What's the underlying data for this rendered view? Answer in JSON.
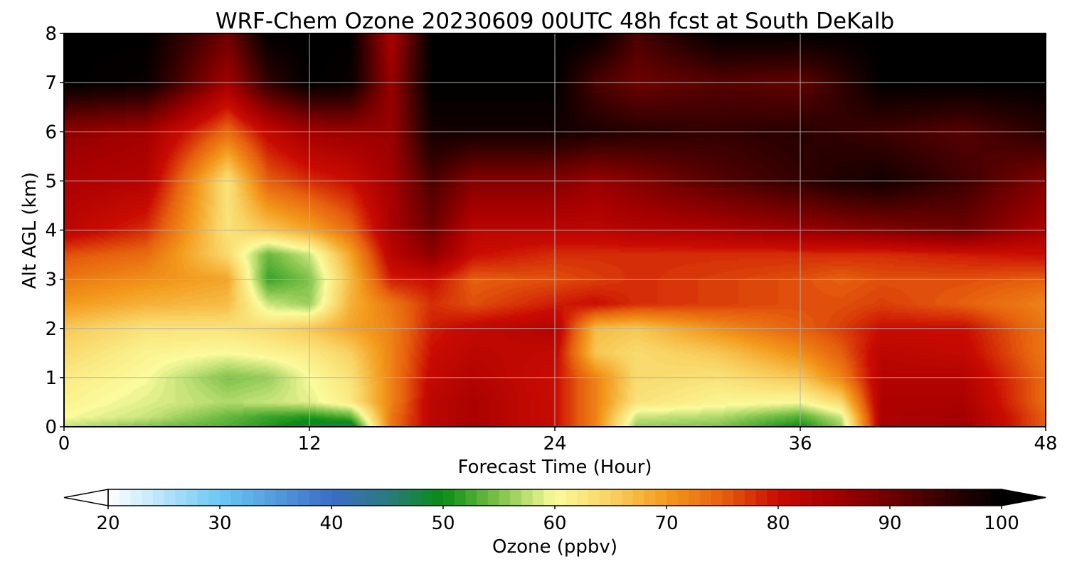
{
  "chart_data": {
    "type": "heatmap",
    "title": "WRF-Chem Ozone  20230609 00UTC 48h fcst at South DeKalb",
    "xlabel": "Forecast Time (Hour)",
    "ylabel": "Alt AGL (km)",
    "xlim": [
      0,
      48
    ],
    "ylim": [
      0,
      8
    ],
    "x_ticks": [
      "0",
      "12",
      "24",
      "36",
      "48"
    ],
    "y_ticks": [
      "0",
      "1",
      "2",
      "3",
      "4",
      "5",
      "6",
      "7",
      "8"
    ],
    "grid": true,
    "x": [
      0,
      4,
      8,
      10,
      12,
      14,
      16,
      18,
      20,
      24,
      26,
      28,
      32,
      36,
      38,
      40,
      44,
      48
    ],
    "y": [
      0,
      0.2,
      0.5,
      1,
      1.5,
      2,
      2.5,
      3,
      3.5,
      4,
      5,
      6,
      7,
      8
    ],
    "z": [
      [
        58,
        55,
        53,
        51,
        48,
        47,
        73,
        82,
        84,
        80,
        72,
        56,
        55,
        50,
        56,
        84,
        85,
        75
      ],
      [
        60,
        58,
        54,
        52,
        51,
        53,
        73,
        82,
        84,
        80,
        72,
        58,
        57,
        53,
        58,
        84,
        85,
        75
      ],
      [
        61,
        59,
        57,
        58,
        59,
        62,
        72,
        82,
        84,
        80,
        72,
        63,
        61,
        60,
        64,
        84,
        84,
        74
      ],
      [
        62,
        60,
        55,
        56,
        60,
        63,
        72,
        81,
        83,
        80,
        72,
        64,
        63,
        66,
        72,
        83,
        83,
        74
      ],
      [
        64,
        61,
        60,
        61,
        62,
        65,
        72,
        80,
        82,
        81,
        66,
        64,
        66,
        71,
        75,
        82,
        81,
        73
      ],
      [
        66,
        63,
        63,
        64,
        66,
        69,
        72,
        79,
        81,
        83,
        67,
        66,
        71,
        75,
        77,
        80,
        80,
        73
      ],
      [
        70,
        68,
        67,
        58,
        56,
        68,
        73,
        78,
        76,
        79,
        80,
        78,
        77,
        76,
        76,
        77,
        75,
        72
      ],
      [
        73,
        71,
        69,
        52,
        55,
        67,
        79,
        80,
        75,
        76,
        77,
        78,
        77,
        76,
        75,
        76,
        76,
        75
      ],
      [
        76,
        74,
        64,
        54,
        58,
        69,
        82,
        87,
        80,
        78,
        78,
        78,
        78,
        78,
        78,
        78,
        79,
        80
      ],
      [
        82,
        78,
        63,
        66,
        69,
        74,
        84,
        90,
        82,
        82,
        82,
        83,
        84,
        86,
        87,
        88,
        90,
        84
      ],
      [
        84,
        83,
        63,
        75,
        78,
        80,
        85,
        93,
        88,
        88,
        86,
        88,
        92,
        95,
        97,
        98,
        94,
        88
      ],
      [
        87,
        85,
        74,
        81,
        85,
        86,
        86,
        98,
        98,
        98,
        97,
        96,
        95,
        96,
        95,
        94,
        92,
        96
      ],
      [
        100,
        99,
        85,
        95,
        100,
        99,
        86,
        100,
        100,
        100,
        93,
        90,
        92,
        91,
        95,
        100,
        100,
        100
      ],
      [
        100,
        100,
        90,
        100,
        100,
        100,
        84,
        100,
        100,
        100,
        100,
        93,
        100,
        100,
        100,
        100,
        100,
        100
      ]
    ],
    "colorbar": {
      "label": "Ozone  (ppbv)",
      "ticks": [
        "20",
        "30",
        "40",
        "50",
        "60",
        "70",
        "80",
        "90",
        "100"
      ],
      "range": [
        20,
        100
      ],
      "extend": "both",
      "stops": [
        {
          "v": 20,
          "c": "#ffffff"
        },
        {
          "v": 30,
          "c": "#6cc7f4"
        },
        {
          "v": 40,
          "c": "#3b6dc6"
        },
        {
          "v": 45,
          "c": "#2a7a80"
        },
        {
          "v": 50,
          "c": "#0a8c14"
        },
        {
          "v": 55,
          "c": "#7fc24a"
        },
        {
          "v": 60,
          "c": "#fbfb9c"
        },
        {
          "v": 65,
          "c": "#f8d262"
        },
        {
          "v": 70,
          "c": "#f39a1c"
        },
        {
          "v": 75,
          "c": "#e6600e"
        },
        {
          "v": 80,
          "c": "#c90b02"
        },
        {
          "v": 85,
          "c": "#a40000"
        },
        {
          "v": 90,
          "c": "#6e0000"
        },
        {
          "v": 95,
          "c": "#320000"
        },
        {
          "v": 100,
          "c": "#000000"
        }
      ]
    }
  }
}
